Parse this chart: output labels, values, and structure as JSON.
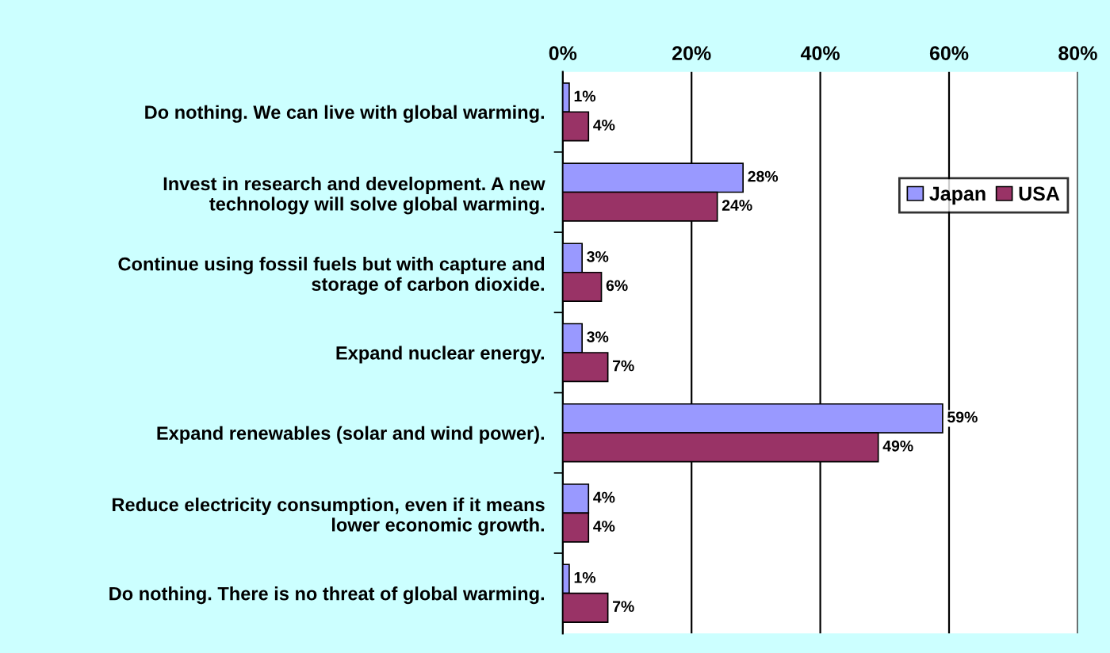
{
  "chart_data": {
    "type": "bar",
    "orientation": "horizontal",
    "categories": [
      "Do nothing. We can live with global warming.",
      "Invest in research and development. A new\ntechnology will solve global warming.",
      "Continue using fossil fuels but with capture and\nstorage of carbon dioxide.",
      "Expand nuclear energy.",
      "Expand renewables (solar and wind power).",
      "Reduce electricity consumption, even if it means\nlower economic growth.",
      "Do nothing. There is no threat of global warming."
    ],
    "series": [
      {
        "name": "Japan",
        "color": "#9999ff",
        "values": [
          1,
          28,
          3,
          3,
          59,
          4,
          1
        ],
        "value_labels": [
          "1%",
          "28%",
          "3%",
          "3%",
          "59%",
          "4%",
          "1%"
        ]
      },
      {
        "name": "USA",
        "color": "#993366",
        "values": [
          4,
          24,
          6,
          7,
          49,
          4,
          7
        ],
        "value_labels": [
          "4%",
          "24%",
          "6%",
          "7%",
          "49%",
          "4%",
          "7%"
        ]
      }
    ],
    "xlim": [
      0,
      80
    ],
    "xticks": [
      {
        "value": 0,
        "label": "0%"
      },
      {
        "value": 20,
        "label": "20%"
      },
      {
        "value": 40,
        "label": "40%"
      },
      {
        "value": 60,
        "label": "60%"
      },
      {
        "value": 80,
        "label": "80%"
      }
    ],
    "grid": "x",
    "legend": "right"
  }
}
